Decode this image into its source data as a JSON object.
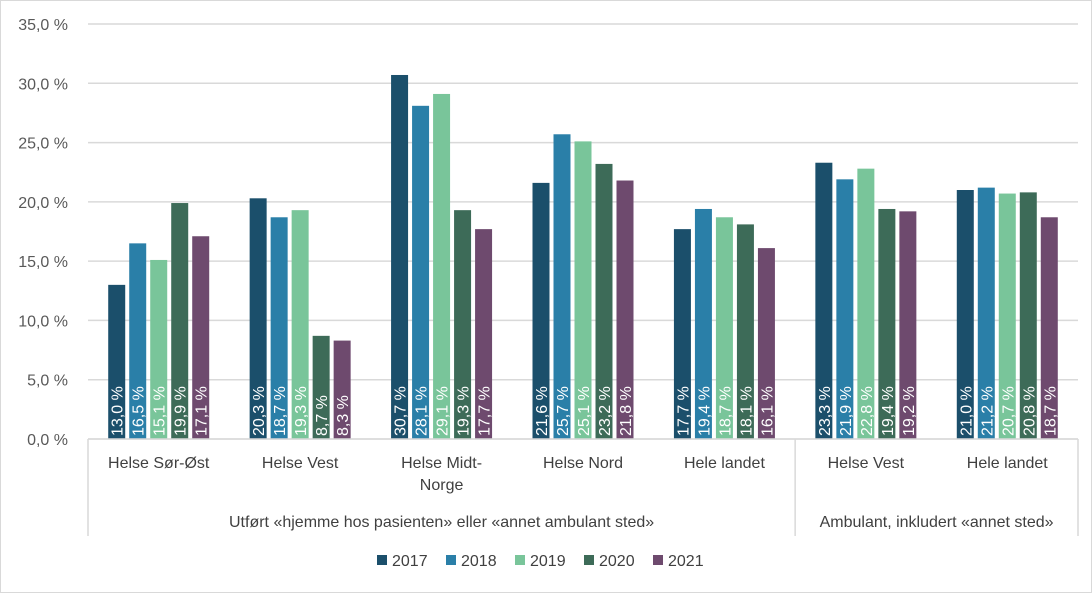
{
  "chart_data": {
    "type": "bar",
    "title": "",
    "xlabel": "",
    "ylabel": "",
    "ylim": [
      0,
      35
    ],
    "yticks": [
      "0,0 %",
      "5,0 %",
      "10,0 %",
      "15,0 %",
      "20,0 %",
      "25,0 %",
      "30,0 %",
      "35,0 %"
    ],
    "grid": true,
    "legend_position": "bottom",
    "categories": [
      "Helse Sør-Øst",
      "Helse Vest",
      "Helse Midt-Norge",
      "Helse Nord",
      "Hele landet",
      "Helse Vest",
      "Hele landet"
    ],
    "category_groups": [
      {
        "label": "Utført «hjemme hos pasienten» eller «annet ambulant sted»",
        "count": 5
      },
      {
        "label": "Ambulant, inkludert «annet sted»",
        "count": 2
      }
    ],
    "series": [
      {
        "name": "2017",
        "color": "#1b4f6b",
        "values": [
          13.0,
          20.3,
          30.7,
          21.6,
          17.7,
          23.3,
          21.0
        ]
      },
      {
        "name": "2018",
        "color": "#2a7fa8",
        "values": [
          16.5,
          18.7,
          28.1,
          25.7,
          19.4,
          21.9,
          21.2
        ]
      },
      {
        "name": "2019",
        "color": "#79c59a",
        "values": [
          15.1,
          19.3,
          29.1,
          25.1,
          18.7,
          22.8,
          20.7
        ]
      },
      {
        "name": "2020",
        "color": "#3d6b58",
        "values": [
          19.9,
          8.7,
          19.3,
          23.2,
          18.1,
          19.4,
          20.8
        ]
      },
      {
        "name": "2021",
        "color": "#6e4a6e",
        "values": [
          17.1,
          8.3,
          17.7,
          21.8,
          16.1,
          19.2,
          18.7
        ]
      }
    ],
    "data_label_format": "{v} %"
  }
}
